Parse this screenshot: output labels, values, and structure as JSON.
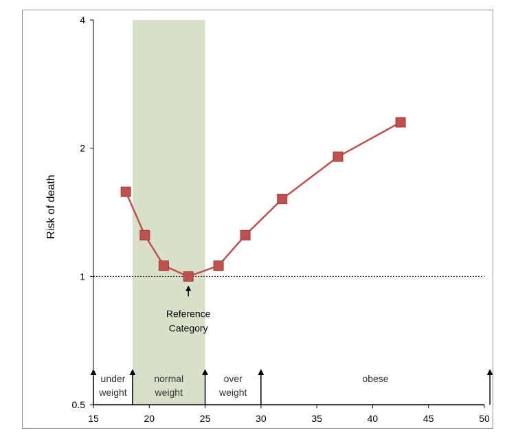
{
  "chart_data": {
    "type": "line",
    "title": "",
    "xlabel": "",
    "ylabel": "Risk of death",
    "y_scale": "log",
    "xlim": [
      15,
      50
    ],
    "ylim": [
      0.5,
      4
    ],
    "x_ticks": [
      15,
      20,
      25,
      30,
      35,
      40,
      45,
      50
    ],
    "y_ticks": [
      0.5,
      1,
      2,
      4
    ],
    "series": [
      {
        "color": "#c0504d",
        "marker": "square",
        "x": [
          17.9,
          19.6,
          21.3,
          23.5,
          26.2,
          28.6,
          31.9,
          36.9,
          42.5
        ],
        "y": [
          1.58,
          1.25,
          1.06,
          1.0,
          1.06,
          1.25,
          1.52,
          1.91,
          2.3
        ]
      }
    ],
    "reference_line": {
      "y": 1,
      "style": "dotted"
    },
    "shaded_band": {
      "x_from": 18.5,
      "x_to": 25,
      "color": "#d9e0c9"
    },
    "bmi_categories": [
      {
        "label": "under\nweight",
        "from": 15,
        "to": 18.5
      },
      {
        "label": "normal\nweight",
        "from": 18.5,
        "to": 25
      },
      {
        "label": "over\nweight",
        "from": 25,
        "to": 30
      },
      {
        "label": "obese",
        "from": 30,
        "to": 50.5
      }
    ],
    "category_boundaries": [
      15,
      18.5,
      25,
      30,
      50.5
    ],
    "annotation": {
      "text": "Reference\nCategory",
      "x": 23.5,
      "y": 1.0
    }
  },
  "colors": {
    "line": "#c0504d",
    "marker_fill": "#c0504d",
    "band": "#d9e0c9",
    "axis": "#000000",
    "frame": "#8c8c8c"
  }
}
